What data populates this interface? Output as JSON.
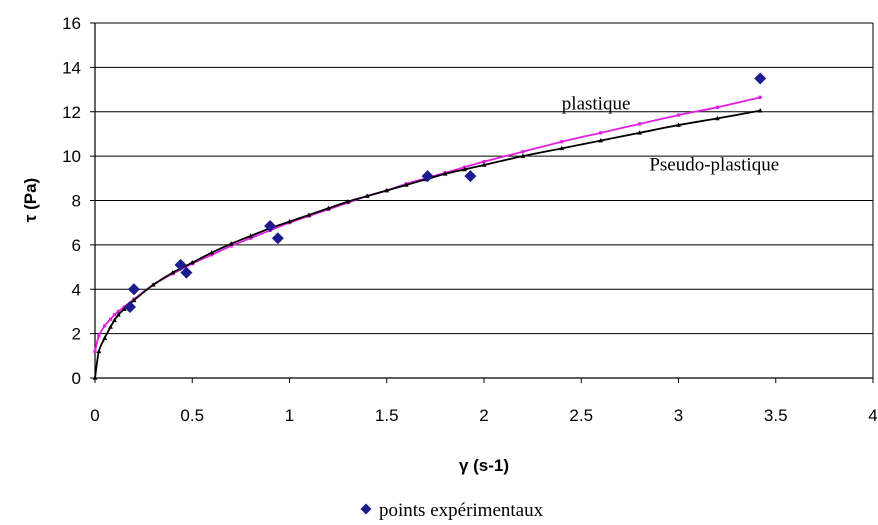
{
  "chart_data": {
    "type": "scatter",
    "xlabel": "γ (s-1)",
    "ylabel": "τ (Pa)",
    "xlim": [
      0,
      4
    ],
    "ylim": [
      0,
      16
    ],
    "x_ticks": [
      "0",
      "0.5",
      "1",
      "1.5",
      "2",
      "2.5",
      "3",
      "3.5",
      "4"
    ],
    "y_ticks": [
      "0",
      "2",
      "4",
      "6",
      "8",
      "10",
      "12",
      "14",
      "16"
    ],
    "grid": "horizontal",
    "legend_position": "bottom",
    "annotations": [
      {
        "text": "plastique",
        "x": 2.4,
        "y": 12.1
      },
      {
        "text": "Pseudo-plastique",
        "x": 2.85,
        "y": 9.35
      }
    ],
    "series": [
      {
        "name": "points expérimentaux",
        "style": "markers",
        "marker": "diamond",
        "color": "#1c1c8c",
        "x": [
          0.18,
          0.2,
          0.44,
          0.47,
          0.9,
          0.94,
          1.71,
          1.93,
          3.42
        ],
        "y": [
          3.2,
          4.0,
          5.1,
          4.75,
          6.85,
          6.3,
          9.1,
          9.1,
          13.5
        ]
      },
      {
        "label": "plastique",
        "style": "line",
        "color": "#e020e0",
        "x": [
          0,
          0.02,
          0.05,
          0.08,
          0.1,
          0.12,
          0.15,
          0.2,
          0.3,
          0.4,
          0.5,
          0.6,
          0.7,
          0.8,
          0.9,
          1.0,
          1.1,
          1.2,
          1.3,
          1.4,
          1.5,
          1.6,
          1.7,
          1.8,
          1.9,
          2.0,
          2.2,
          2.4,
          2.6,
          2.8,
          3.0,
          3.2,
          3.42
        ],
        "y": [
          1.2,
          1.9,
          2.35,
          2.65,
          2.85,
          3.0,
          3.2,
          3.55,
          4.2,
          4.7,
          5.15,
          5.55,
          5.95,
          6.3,
          6.65,
          7.0,
          7.3,
          7.6,
          7.9,
          8.2,
          8.45,
          8.75,
          9.0,
          9.25,
          9.5,
          9.75,
          10.2,
          10.65,
          11.05,
          11.45,
          11.85,
          12.2,
          12.65
        ]
      },
      {
        "label": "Pseudo-plastique",
        "style": "line",
        "color": "#000000",
        "x": [
          0,
          0.02,
          0.05,
          0.08,
          0.1,
          0.12,
          0.15,
          0.2,
          0.3,
          0.4,
          0.5,
          0.6,
          0.7,
          0.8,
          0.9,
          1.0,
          1.1,
          1.2,
          1.3,
          1.4,
          1.5,
          1.6,
          1.7,
          1.8,
          1.9,
          2.0,
          2.2,
          2.4,
          2.6,
          2.8,
          3.0,
          3.2,
          3.42
        ],
        "y": [
          0,
          1.2,
          1.8,
          2.3,
          2.6,
          2.85,
          3.1,
          3.5,
          4.2,
          4.75,
          5.2,
          5.65,
          6.05,
          6.4,
          6.75,
          7.05,
          7.35,
          7.65,
          7.95,
          8.2,
          8.45,
          8.7,
          8.95,
          9.2,
          9.4,
          9.6,
          10.0,
          10.35,
          10.7,
          11.05,
          11.4,
          11.7,
          12.05
        ]
      }
    ]
  }
}
